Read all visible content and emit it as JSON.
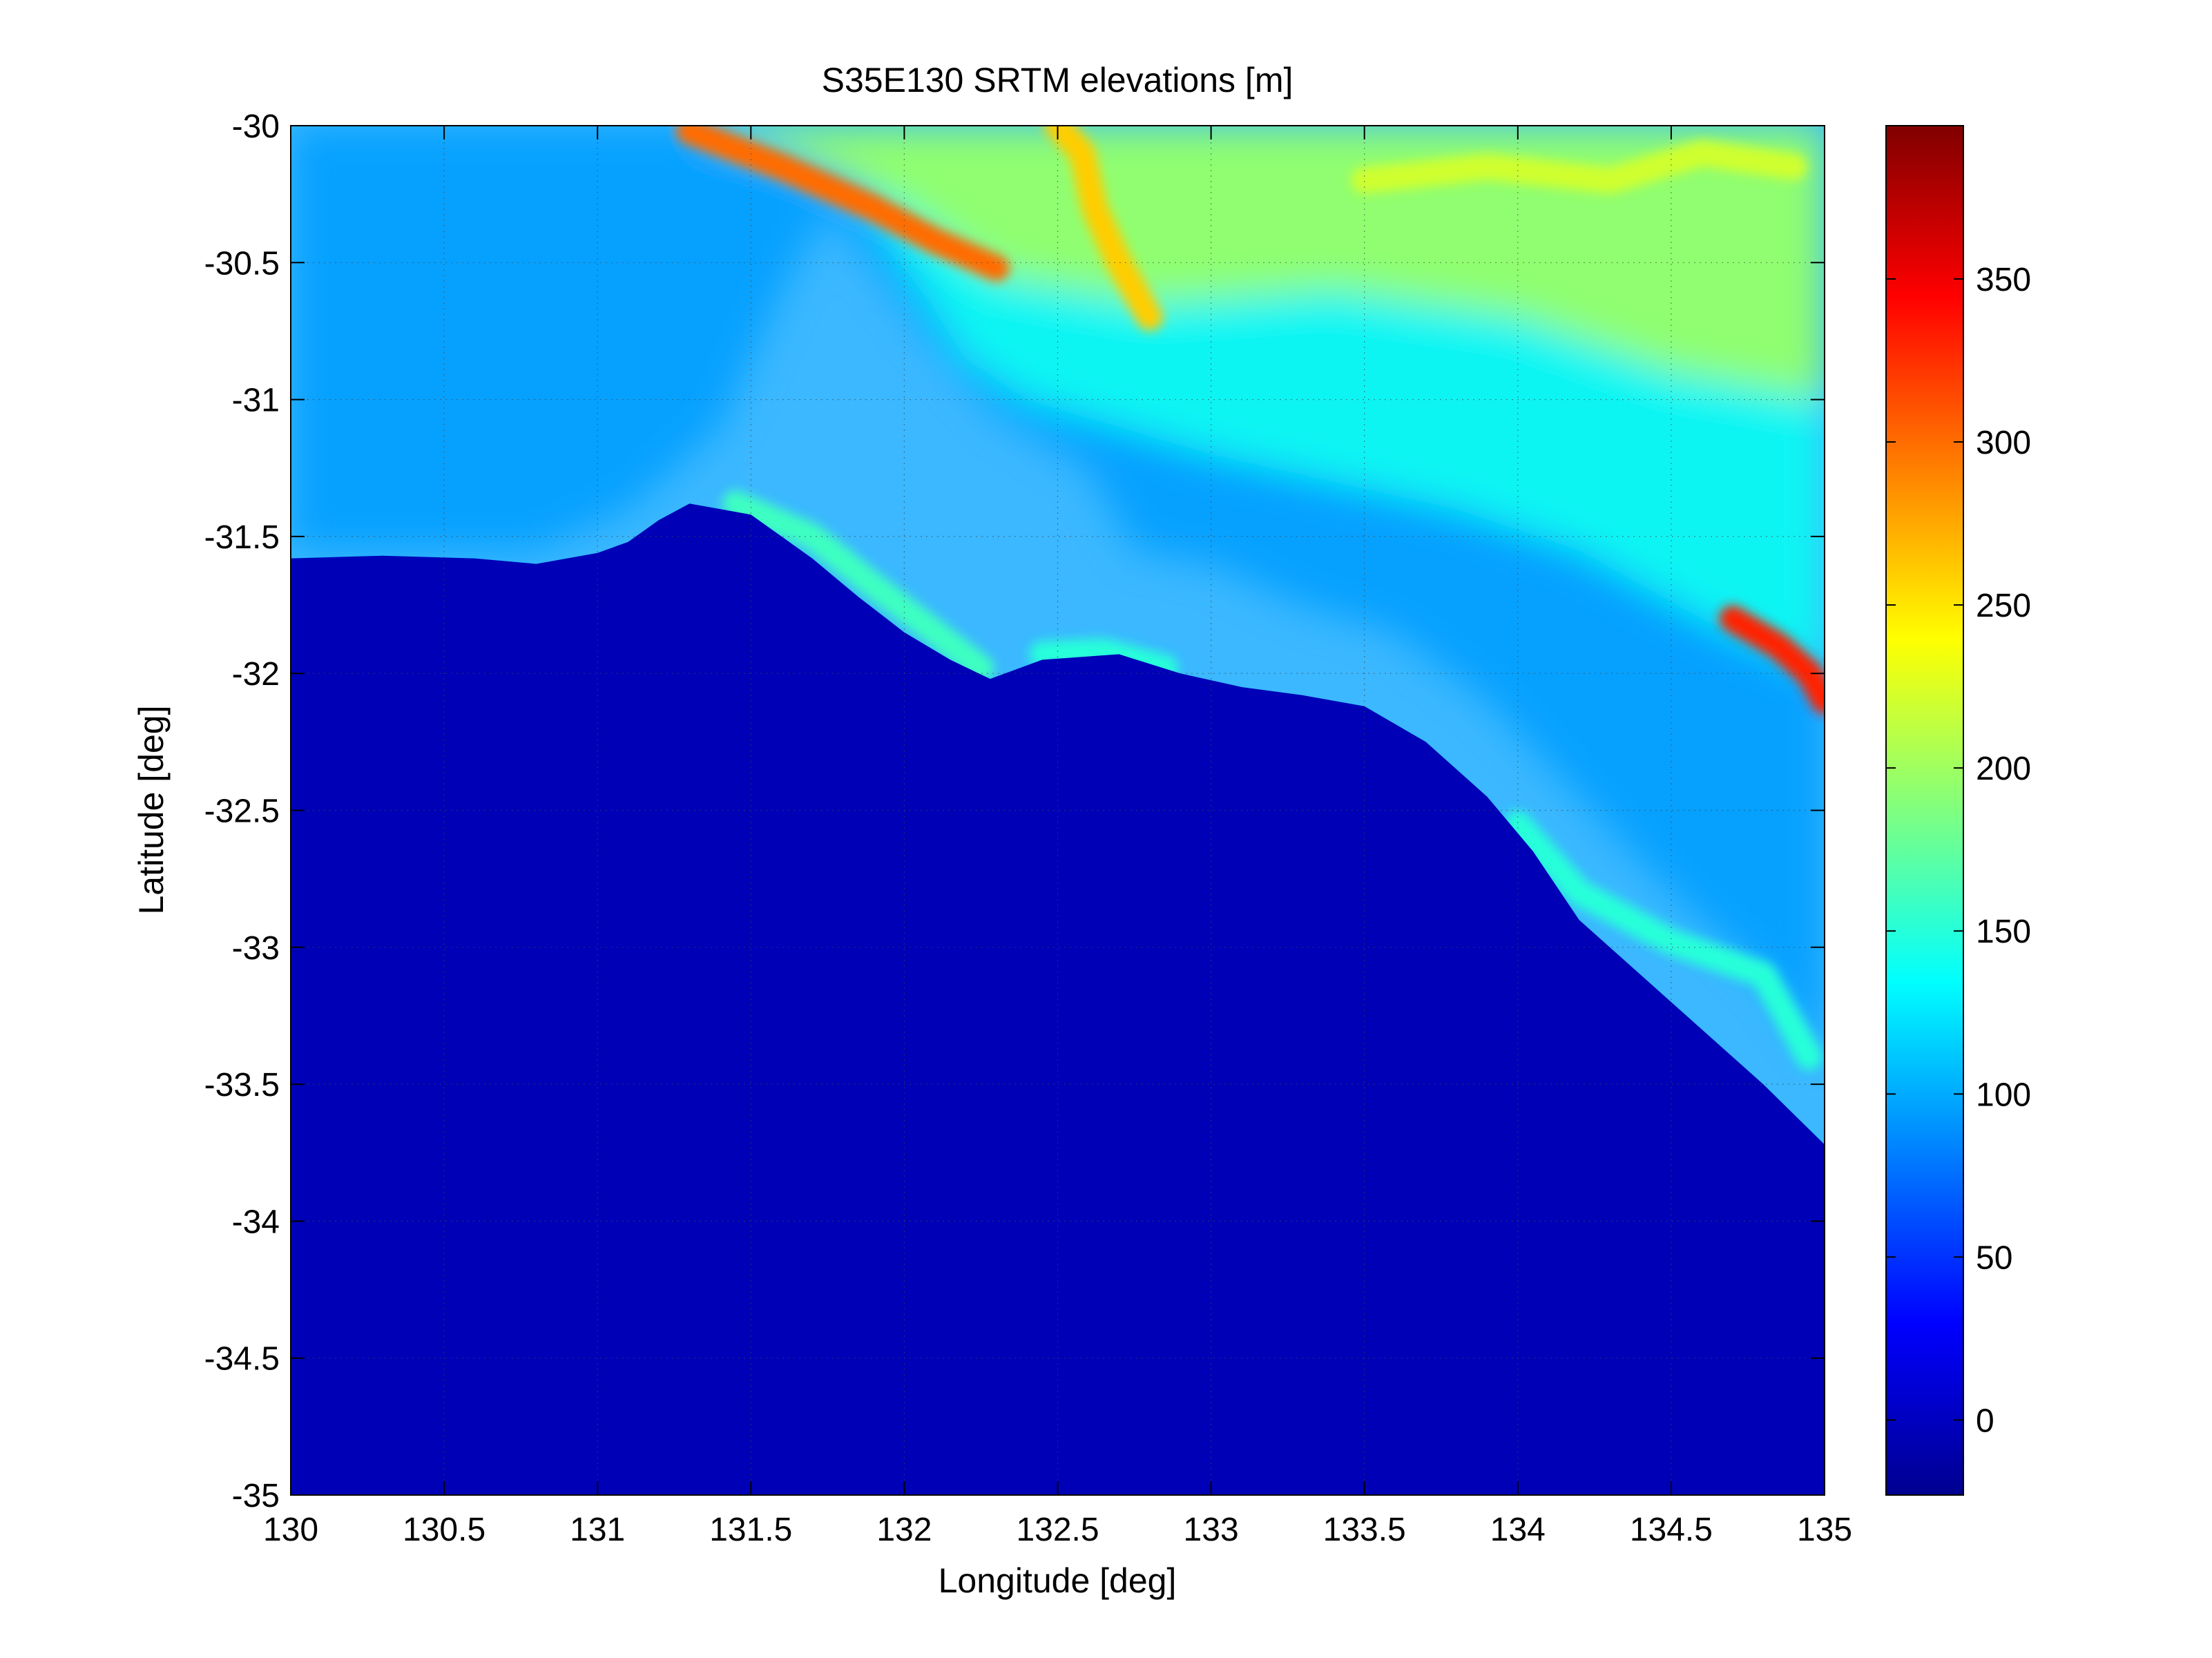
{
  "chart_data": {
    "type": "heatmap",
    "title": "S35E130 SRTM elevations [m]",
    "xlabel": "Longitude [deg]",
    "ylabel": "Latitude [deg]",
    "xlim": [
      130,
      135
    ],
    "ylim": [
      -35,
      -30
    ],
    "x_ticks": [
      "130",
      "130.5",
      "131",
      "131.5",
      "132",
      "132.5",
      "133",
      "133.5",
      "134",
      "134.5",
      "135"
    ],
    "x_tick_values": [
      130,
      130.5,
      131,
      131.5,
      132,
      132.5,
      133,
      133.5,
      134,
      134.5,
      135
    ],
    "y_ticks": [
      "-30",
      "-30.5",
      "-31",
      "-31.5",
      "-32",
      "-32.5",
      "-33",
      "-33.5",
      "-34",
      "-34.5",
      "-35"
    ],
    "y_tick_values": [
      -30,
      -30.5,
      -31,
      -31.5,
      -32,
      -32.5,
      -33,
      -33.5,
      -34,
      -34.5,
      -35
    ],
    "grid": true,
    "colormap": "jet",
    "colorbar": {
      "clim": [
        -23,
        397
      ],
      "ticks": [
        "0",
        "50",
        "100",
        "150",
        "200",
        "250",
        "300",
        "350"
      ],
      "tick_values": [
        0,
        50,
        100,
        150,
        200,
        250,
        300,
        350
      ]
    },
    "ocean_value": 0,
    "coastline": [
      [
        130.0,
        -31.58
      ],
      [
        130.3,
        -31.57
      ],
      [
        130.6,
        -31.58
      ],
      [
        130.8,
        -31.6
      ],
      [
        131.0,
        -31.56
      ],
      [
        131.1,
        -31.52
      ],
      [
        131.2,
        -31.44
      ],
      [
        131.3,
        -31.38
      ],
      [
        131.5,
        -31.42
      ],
      [
        131.7,
        -31.58
      ],
      [
        131.85,
        -31.72
      ],
      [
        132.0,
        -31.85
      ],
      [
        132.15,
        -31.95
      ],
      [
        132.28,
        -32.02
      ],
      [
        132.45,
        -31.95
      ],
      [
        132.7,
        -31.93
      ],
      [
        132.9,
        -32.0
      ],
      [
        133.1,
        -32.05
      ],
      [
        133.3,
        -32.08
      ],
      [
        133.5,
        -32.12
      ],
      [
        133.7,
        -32.25
      ],
      [
        133.9,
        -32.45
      ],
      [
        134.05,
        -32.65
      ],
      [
        134.2,
        -32.9
      ],
      [
        134.4,
        -33.1
      ],
      [
        134.6,
        -33.3
      ],
      [
        134.8,
        -33.5
      ],
      [
        135.0,
        -33.72
      ]
    ],
    "elevation_bands": [
      {
        "boundary": [
          [
            130.0,
            -31.55
          ],
          [
            130.8,
            -31.55
          ],
          [
            131.1,
            -31.4
          ],
          [
            131.4,
            -31.1
          ],
          [
            131.6,
            -30.6
          ],
          [
            131.75,
            -30.3
          ],
          [
            131.9,
            -30.5
          ],
          [
            132.1,
            -30.8
          ],
          [
            132.3,
            -31.05
          ],
          [
            132.6,
            -31.25
          ],
          [
            132.75,
            -31.55
          ],
          [
            133.0,
            -31.6
          ],
          [
            133.3,
            -31.75
          ],
          [
            133.6,
            -31.85
          ],
          [
            133.9,
            -32.1
          ],
          [
            134.2,
            -32.45
          ],
          [
            134.5,
            -32.8
          ],
          [
            134.8,
            -33.1
          ],
          [
            135.0,
            -33.4
          ],
          [
            135.0,
            -30.0
          ],
          [
            130.0,
            -30.0
          ]
        ],
        "value": 95
      },
      {
        "boundary": [
          [
            131.8,
            -30.1
          ],
          [
            132.0,
            -30.5
          ],
          [
            132.2,
            -30.85
          ],
          [
            132.4,
            -31.0
          ],
          [
            132.7,
            -31.1
          ],
          [
            133.0,
            -31.2
          ],
          [
            133.4,
            -31.3
          ],
          [
            133.8,
            -31.4
          ],
          [
            134.2,
            -31.55
          ],
          [
            134.6,
            -31.8
          ],
          [
            135.0,
            -32.0
          ],
          [
            135.0,
            -30.0
          ],
          [
            131.3,
            -30.0
          ]
        ],
        "value": 140
      },
      {
        "boundary": [
          [
            131.3,
            -30.0
          ],
          [
            131.6,
            -30.1
          ],
          [
            132.0,
            -30.3
          ],
          [
            132.3,
            -30.55
          ],
          [
            132.8,
            -30.65
          ],
          [
            133.4,
            -30.6
          ],
          [
            134.0,
            -30.7
          ],
          [
            134.5,
            -30.9
          ],
          [
            135.0,
            -31.0
          ],
          [
            135.0,
            -30.0
          ]
        ],
        "value": 200
      }
    ],
    "ridges": [
      {
        "points": [
          [
            131.3,
            -30.02
          ],
          [
            131.6,
            -30.15
          ],
          [
            131.9,
            -30.3
          ],
          [
            132.1,
            -30.42
          ],
          [
            132.3,
            -30.52
          ]
        ],
        "value": 300
      },
      {
        "points": [
          [
            132.5,
            -30.0
          ],
          [
            132.58,
            -30.1
          ],
          [
            132.62,
            -30.3
          ],
          [
            132.7,
            -30.5
          ],
          [
            132.8,
            -30.7
          ]
        ],
        "value": 260
      },
      {
        "points": [
          [
            133.5,
            -30.2
          ],
          [
            133.9,
            -30.15
          ],
          [
            134.3,
            -30.2
          ],
          [
            134.6,
            -30.1
          ],
          [
            134.9,
            -30.15
          ]
        ],
        "value": 220
      },
      {
        "points": [
          [
            134.7,
            -31.8
          ],
          [
            134.85,
            -31.9
          ],
          [
            134.95,
            -32.0
          ],
          [
            135.0,
            -32.1
          ]
        ],
        "value": 330
      },
      {
        "points": [
          [
            131.45,
            -31.38
          ],
          [
            131.7,
            -31.5
          ],
          [
            131.9,
            -31.68
          ],
          [
            132.1,
            -31.85
          ],
          [
            132.25,
            -31.98
          ]
        ],
        "value": 160
      },
      {
        "points": [
          [
            132.45,
            -31.93
          ],
          [
            132.65,
            -31.92
          ],
          [
            132.85,
            -31.98
          ]
        ],
        "value": 150
      },
      {
        "points": [
          [
            134.0,
            -32.55
          ],
          [
            134.2,
            -32.8
          ],
          [
            134.5,
            -32.98
          ],
          [
            134.8,
            -33.1
          ],
          [
            134.95,
            -33.4
          ]
        ],
        "value": 150
      }
    ]
  }
}
